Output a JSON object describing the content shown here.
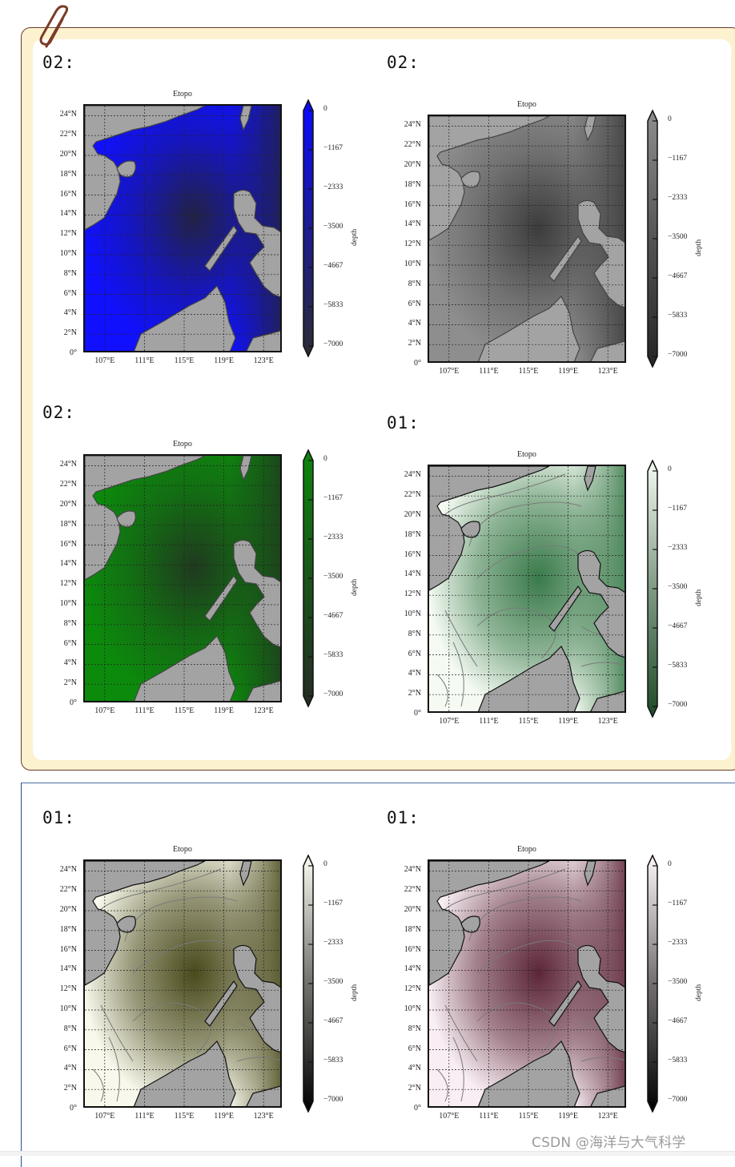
{
  "watermark": "CSDN @海洋与大气科学",
  "panels": [
    {
      "label": "02:",
      "title": "Etopo",
      "colormap": "blue",
      "ocean_shallow": "#1010ff",
      "ocean_deep": "#222244",
      "cb_top": "#0a0aff",
      "cb_bottom": "#2b2b33",
      "contours": false
    },
    {
      "label": "02:",
      "title": "Etopo",
      "colormap": "gray",
      "ocean_shallow": "#8e8e8e",
      "ocean_deep": "#3c3c3c",
      "cb_top": "#8e8e8e",
      "cb_bottom": "#252525",
      "contours": false
    },
    {
      "label": "02:",
      "title": "Etopo",
      "colormap": "green",
      "ocean_shallow": "#0c8a0c",
      "ocean_deep": "#1f3a1f",
      "cb_top": "#0c860c",
      "cb_bottom": "#252b25",
      "contours": false
    },
    {
      "label": "01:",
      "title": "Etopo",
      "colormap": "Greens",
      "ocean_shallow": "#f5fbf3",
      "ocean_deep": "#3a7a4a",
      "cb_top": "#f5fbf3",
      "cb_bottom": "#1f4a28",
      "contours": true
    },
    {
      "label": "01:",
      "title": "Etopo",
      "colormap": "olive",
      "ocean_shallow": "#f8f8ec",
      "ocean_deep": "#4a4a1c",
      "cb_top": "#fbfbf3",
      "cb_bottom": "#000000",
      "contours": true
    },
    {
      "label": "01:",
      "title": "Etopo",
      "colormap": "pink",
      "ocean_shallow": "#f8eef3",
      "ocean_deep": "#5c2638",
      "cb_top": "#fdf5f8",
      "cb_bottom": "#000000",
      "contours": true
    }
  ],
  "chart_data": [
    {
      "type": "heatmap",
      "title": "Etopo",
      "panel_label": "02:",
      "colormap": "blue",
      "xlabel": "",
      "ylabel": "",
      "x_ticks": [
        "107°E",
        "111°E",
        "115°E",
        "119°E",
        "123°E"
      ],
      "y_ticks": [
        "0°",
        "2°N",
        "4°N",
        "6°N",
        "8°N",
        "10°N",
        "12°N",
        "14°N",
        "16°N",
        "18°N",
        "20°N",
        "22°N",
        "24°N"
      ],
      "xlim": [
        105,
        125
      ],
      "ylim": [
        0,
        25
      ],
      "colorbar": {
        "label": "depth",
        "ticks": [
          0,
          -1167,
          -2333,
          -3500,
          -4667,
          -5833,
          -7000
        ],
        "range": [
          -7000,
          0
        ],
        "extend": "both"
      },
      "grid": true
    },
    {
      "type": "heatmap",
      "title": "Etopo",
      "panel_label": "02:",
      "colormap": "gray",
      "x_ticks": [
        "107°E",
        "111°E",
        "115°E",
        "119°E",
        "123°E"
      ],
      "y_ticks": [
        "0°",
        "2°N",
        "4°N",
        "6°N",
        "8°N",
        "10°N",
        "12°N",
        "14°N",
        "16°N",
        "18°N",
        "20°N",
        "22°N",
        "24°N"
      ],
      "xlim": [
        105,
        125
      ],
      "ylim": [
        0,
        25
      ],
      "colorbar": {
        "label": "depth",
        "ticks": [
          0,
          -1167,
          -2333,
          -3500,
          -4667,
          -5833,
          -7000
        ],
        "range": [
          -7000,
          0
        ],
        "extend": "both"
      },
      "grid": true
    },
    {
      "type": "heatmap",
      "title": "Etopo",
      "panel_label": "02:",
      "colormap": "green",
      "x_ticks": [
        "107°E",
        "111°E",
        "115°E",
        "119°E",
        "123°E"
      ],
      "y_ticks": [
        "0°",
        "2°N",
        "4°N",
        "6°N",
        "8°N",
        "10°N",
        "12°N",
        "14°N",
        "16°N",
        "18°N",
        "20°N",
        "22°N",
        "24°N"
      ],
      "xlim": [
        105,
        125
      ],
      "ylim": [
        0,
        25
      ],
      "colorbar": {
        "label": "depth",
        "ticks": [
          0,
          -1167,
          -2333,
          -3500,
          -4667,
          -5833,
          -7000
        ],
        "range": [
          -7000,
          0
        ],
        "extend": "both"
      },
      "grid": true
    },
    {
      "type": "heatmap",
      "title": "Etopo",
      "panel_label": "01:",
      "colormap": "Greens (white to dark green) with contours",
      "x_ticks": [
        "107°E",
        "111°E",
        "115°E",
        "119°E",
        "123°E"
      ],
      "y_ticks": [
        "0°",
        "2°N",
        "4°N",
        "6°N",
        "8°N",
        "10°N",
        "12°N",
        "14°N",
        "16°N",
        "18°N",
        "20°N",
        "22°N",
        "24°N"
      ],
      "xlim": [
        105,
        125
      ],
      "ylim": [
        0,
        25
      ],
      "colorbar": {
        "label": "depth",
        "ticks": [
          0,
          -1167,
          -2333,
          -3500,
          -4667,
          -5833,
          -7000
        ],
        "range": [
          -7000,
          0
        ],
        "extend": "both"
      },
      "grid": true
    },
    {
      "type": "heatmap",
      "title": "Etopo",
      "panel_label": "01:",
      "colormap": "olive (white to black) with contours",
      "x_ticks": [
        "107°E",
        "111°E",
        "115°E",
        "119°E",
        "123°E"
      ],
      "y_ticks": [
        "0°",
        "2°N",
        "4°N",
        "6°N",
        "8°N",
        "10°N",
        "12°N",
        "14°N",
        "16°N",
        "18°N",
        "20°N",
        "22°N",
        "24°N"
      ],
      "xlim": [
        105,
        125
      ],
      "ylim": [
        0,
        25
      ],
      "colorbar": {
        "label": "depth",
        "ticks": [
          0,
          -1167,
          -2333,
          -3500,
          -4667,
          -5833,
          -7000
        ],
        "range": [
          -7000,
          0
        ],
        "extend": "both"
      },
      "grid": true
    },
    {
      "type": "heatmap",
      "title": "Etopo",
      "panel_label": "01:",
      "colormap": "pink (white to black) with contours",
      "x_ticks": [
        "107°E",
        "111°E",
        "115°E",
        "119°E",
        "123°E"
      ],
      "y_ticks": [
        "0°",
        "2°N",
        "4°N",
        "6°N",
        "8°N",
        "10°N",
        "12°N",
        "14°N",
        "16°N",
        "18°N",
        "20°N",
        "22°N",
        "24°N"
      ],
      "xlim": [
        105,
        125
      ],
      "ylim": [
        0,
        25
      ],
      "colorbar": {
        "label": "depth",
        "ticks": [
          0,
          -1167,
          -2333,
          -3500,
          -4667,
          -5833,
          -7000
        ],
        "range": [
          -7000,
          0
        ],
        "extend": "both"
      },
      "grid": true
    }
  ],
  "axes": {
    "x_ticks": [
      "107°E",
      "111°E",
      "115°E",
      "119°E",
      "123°E"
    ],
    "y_ticks": [
      "24°N",
      "22°N",
      "20°N",
      "18°N",
      "16°N",
      "14°N",
      "12°N",
      "10°N",
      "8°N",
      "6°N",
      "4°N",
      "2°N",
      "0°"
    ],
    "cb_ticks": [
      "0",
      "−1167",
      "−2333",
      "−3500",
      "−4667",
      "−5833",
      "−7000"
    ],
    "cb_title": "depth"
  }
}
